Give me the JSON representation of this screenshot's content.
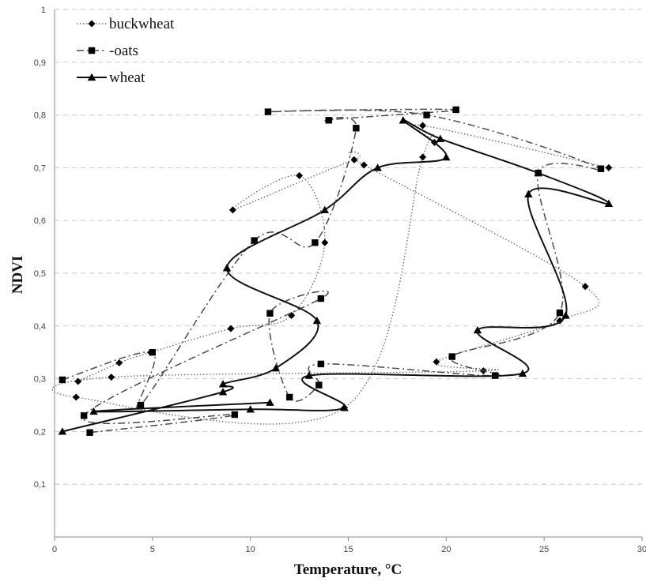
{
  "chart_data": {
    "type": "line",
    "xlabel": "Temperature, °C",
    "ylabel": "NDVI",
    "xlim": [
      0,
      30
    ],
    "ylim": [
      0,
      1
    ],
    "x_ticks": [
      "0",
      "5",
      "10",
      "15",
      "20",
      "25",
      "30"
    ],
    "y_ticks": [
      "1",
      "0,9",
      "0,8",
      "0,7",
      "0,6",
      "0,5",
      "0,4",
      "0,3",
      "0,2",
      "0,1"
    ],
    "grid": "horizontal dashed",
    "legend_position": "top-left",
    "series": [
      {
        "name": "buckwheat",
        "marker": "diamond",
        "line_style": "dotted",
        "points": [
          [
            1.2,
            0.295
          ],
          [
            3.3,
            0.33
          ],
          [
            4.9,
            0.35
          ],
          [
            9.0,
            0.395
          ],
          [
            12.1,
            0.42
          ],
          [
            13.8,
            0.558
          ],
          [
            12.5,
            0.685
          ],
          [
            9.1,
            0.62
          ],
          [
            15.3,
            0.715
          ],
          [
            15.8,
            0.705
          ],
          [
            27.1,
            0.475
          ],
          [
            25.8,
            0.41
          ],
          [
            19.5,
            0.332
          ],
          [
            21.9,
            0.315
          ],
          [
            2.9,
            0.303
          ],
          [
            1.1,
            0.265
          ],
          [
            14.8,
            0.245
          ],
          [
            18.8,
            0.72
          ],
          [
            19.4,
            0.748
          ],
          [
            18.8,
            0.78
          ],
          [
            28.3,
            0.7
          ]
        ]
      },
      {
        "name": "-oats",
        "marker": "square",
        "line_style": "dash-dot",
        "points": [
          [
            0.4,
            0.298
          ],
          [
            5.0,
            0.35
          ],
          [
            4.4,
            0.25
          ],
          [
            10.2,
            0.562
          ],
          [
            13.3,
            0.558
          ],
          [
            15.4,
            0.775
          ],
          [
            14.0,
            0.79
          ],
          [
            20.5,
            0.81
          ],
          [
            10.9,
            0.806
          ],
          [
            19.0,
            0.8
          ],
          [
            27.9,
            0.698
          ],
          [
            24.7,
            0.69
          ],
          [
            25.8,
            0.425
          ],
          [
            20.3,
            0.342
          ],
          [
            22.5,
            0.306
          ],
          [
            13.6,
            0.328
          ],
          [
            13.5,
            0.288
          ],
          [
            12.0,
            0.265
          ],
          [
            11.0,
            0.424
          ],
          [
            13.6,
            0.452
          ],
          [
            1.5,
            0.23
          ],
          [
            9.2,
            0.232
          ],
          [
            1.8,
            0.198
          ]
        ]
      },
      {
        "name": "wheat",
        "marker": "triangle",
        "line_style": "solid",
        "points": [
          [
            0.4,
            0.2
          ],
          [
            8.6,
            0.275
          ],
          [
            8.6,
            0.29
          ],
          [
            11.3,
            0.32
          ],
          [
            13.4,
            0.41
          ],
          [
            8.8,
            0.51
          ],
          [
            13.8,
            0.62
          ],
          [
            16.5,
            0.7
          ],
          [
            20.0,
            0.72
          ],
          [
            17.8,
            0.79
          ],
          [
            19.7,
            0.755
          ],
          [
            24.7,
            0.69
          ],
          [
            28.3,
            0.632
          ],
          [
            24.2,
            0.65
          ],
          [
            26.1,
            0.42
          ],
          [
            21.6,
            0.392
          ],
          [
            23.9,
            0.31
          ],
          [
            13.0,
            0.306
          ],
          [
            14.8,
            0.245
          ],
          [
            10.0,
            0.242
          ],
          [
            2.0,
            0.238
          ],
          [
            11.0,
            0.255
          ]
        ]
      }
    ]
  }
}
